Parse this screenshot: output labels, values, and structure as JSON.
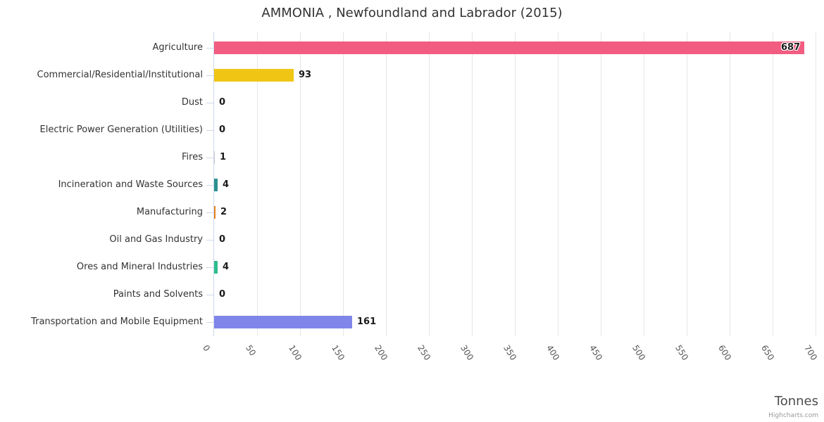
{
  "title": "AMMONIA , Newfoundland and Labrador (2015)",
  "credits_label": "Highcharts.com",
  "axis": {
    "title": "Tonnes"
  },
  "palette": {
    "axis_line": "#ccd6eb",
    "gridline": "#e6e6e6",
    "title_text": "#333333",
    "label_text": "#333333"
  },
  "chart_data": {
    "type": "bar",
    "orientation": "horizontal",
    "title": "AMMONIA , Newfoundland and Labrador (2015)",
    "categories": [
      "Agriculture",
      "Commercial/Residential/Institutional",
      "Dust",
      "Electric Power Generation (Utilities)",
      "Fires",
      "Incineration and Waste Sources",
      "Manufacturing",
      "Oil and Gas Industry",
      "Ores and Mineral Industries",
      "Paints and Solvents",
      "Transportation and Mobile Equipment"
    ],
    "values": [
      687,
      93,
      0,
      0,
      1,
      4,
      2,
      0,
      4,
      0,
      161
    ],
    "bar_colors": [
      "#f15c80",
      "#f0c514",
      null,
      null,
      null,
      "#2b908f",
      "#e8821d",
      null,
      "#2dbe8d",
      null,
      "#8085e9"
    ],
    "data_labels": true,
    "xlabel": "Tonnes",
    "xlim": [
      0,
      700
    ],
    "xticks": [
      0,
      50,
      100,
      150,
      200,
      250,
      300,
      350,
      400,
      450,
      500,
      550,
      600,
      650,
      700
    ],
    "xtick_rotation_deg": 58,
    "grid": true,
    "legend": false
  }
}
